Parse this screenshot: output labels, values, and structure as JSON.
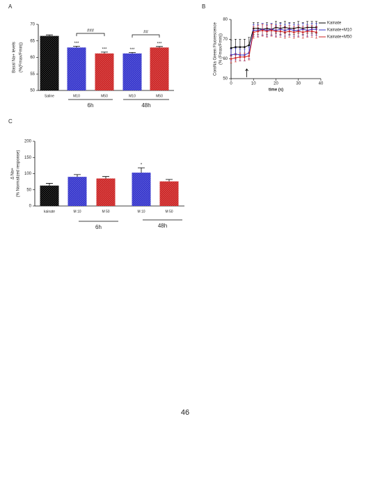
{
  "chart_data": [
    {
      "type": "bar",
      "panel": "A",
      "ylabel": [
        "Basal Na+ levels",
        "(%(Fmax/Fmin))"
      ],
      "categories": [
        "Saline",
        "M10",
        "M50",
        "M10",
        "M50"
      ],
      "values": [
        66.5,
        63.0,
        61.2,
        61.2,
        63.0
      ],
      "errors": [
        0.3,
        0.4,
        0.4,
        0.3,
        0.3
      ],
      "colors": [
        "#000000",
        "#3333cc",
        "#cc2222",
        "#3333cc",
        "#cc2222"
      ],
      "significance": [
        null,
        "***",
        "***",
        "***",
        "***"
      ],
      "brackets": [
        "###",
        "##"
      ],
      "groups": [
        "6h",
        "48h"
      ],
      "ylim": [
        50,
        70
      ],
      "yticks": [
        50,
        55,
        60,
        65,
        70
      ]
    },
    {
      "type": "line",
      "panel": "B",
      "ylabel": [
        "CoroNa Green Fluorescence",
        "(% (Fmax/Fmin))"
      ],
      "xlabel": "time (s)",
      "x": [
        0,
        2,
        4,
        6,
        8,
        10,
        12,
        14,
        16,
        18,
        20,
        22,
        24,
        26,
        28,
        30,
        32,
        34,
        36,
        38
      ],
      "series": [
        {
          "name": "Kainate",
          "color": "#000000",
          "values": [
            65.5,
            66,
            66,
            66,
            67,
            75.5,
            75.5,
            75,
            75.5,
            75,
            76,
            75.5,
            76,
            75.5,
            75.5,
            76,
            75.5,
            76,
            76,
            76
          ],
          "errors": [
            4,
            4,
            4,
            4,
            4,
            3,
            3,
            3,
            3,
            3,
            3,
            3,
            3,
            3,
            3,
            3,
            3,
            3,
            3,
            3
          ]
        },
        {
          "name": "Kainate+M10",
          "color": "#3333cc",
          "values": [
            62,
            62.5,
            62,
            62,
            63,
            74.5,
            74.5,
            75,
            74.5,
            75,
            74.5,
            75,
            74.5,
            75,
            74.5,
            74.5,
            75,
            74.5,
            75,
            75
          ],
          "errors": [
            3,
            3,
            3,
            3,
            3,
            3,
            3,
            3,
            3,
            3,
            3,
            3,
            3,
            3,
            3,
            3,
            3,
            3,
            3,
            3
          ]
        },
        {
          "name": "Kainate+M50",
          "color": "#cc2222",
          "values": [
            60,
            60.5,
            61,
            61,
            61.5,
            73.5,
            74,
            74.5,
            74,
            74.5,
            74,
            74,
            73.5,
            74,
            73.5,
            74,
            73.5,
            74,
            74,
            73.5
          ],
          "errors": [
            2,
            2,
            2,
            2,
            2,
            3,
            3,
            3,
            3,
            3,
            3,
            3,
            3,
            3,
            3,
            3,
            3,
            3,
            3,
            3
          ]
        }
      ],
      "xlim": [
        0,
        40
      ],
      "xticks": [
        0,
        10,
        20,
        30,
        40
      ],
      "ylim": [
        50,
        80
      ],
      "yticks": [
        50,
        60,
        70,
        80
      ]
    },
    {
      "type": "bar",
      "panel": "C",
      "ylabel": [
        "Δ Na+",
        "(% Normalized response)"
      ],
      "categories": [
        "kainate",
        "M 10",
        "M 50",
        "M 10",
        "M 50"
      ],
      "values": [
        63,
        90,
        85,
        103,
        76
      ],
      "errors": [
        7,
        7,
        6,
        15,
        6
      ],
      "colors": [
        "#000000",
        "#3333cc",
        "#cc2222",
        "#3333cc",
        "#cc2222"
      ],
      "significance": [
        null,
        null,
        null,
        "*",
        null
      ],
      "groups": [
        "6h",
        "48h"
      ],
      "ylim": [
        0,
        200
      ],
      "yticks": [
        0,
        50,
        100,
        150,
        200
      ]
    }
  ],
  "page_number": "46"
}
